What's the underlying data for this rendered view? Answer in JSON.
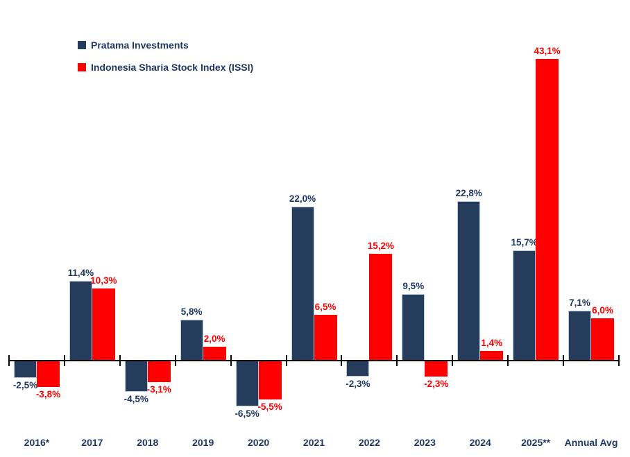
{
  "colors": {
    "pratama_bar": "#263C5B",
    "pratama_bar_border": "#BCC9DA",
    "issi_bar": "#FF0000",
    "pratama_label_text": "#1F3864",
    "issi_label_text": "#FF0000",
    "axis": "#000000",
    "category_label_text": "#1F3864",
    "background": "#FFFFFF"
  },
  "legend": {
    "items": [
      {
        "label": "Pratama Investments",
        "color": "#263C5B",
        "swatch_name": "legend-swatch-pratama"
      },
      {
        "label": "Indonesia Sharia Stock Index (ISSI)",
        "color": "#FF0000",
        "swatch_name": "legend-swatch-issi"
      }
    ]
  },
  "chart_data": {
    "type": "bar",
    "title": "",
    "categories": [
      "2016*",
      "2017",
      "2018",
      "2019",
      "2020",
      "2021",
      "2022",
      "2023",
      "2024",
      "2025**",
      "Annual Avg"
    ],
    "series": [
      {
        "name": "Pratama Investments",
        "color": "#263C5B",
        "label_color": "#1F3864",
        "values": [
          -2.5,
          11.4,
          -4.5,
          5.8,
          -6.5,
          22.0,
          -2.3,
          9.5,
          22.8,
          15.7,
          7.1
        ],
        "labels": [
          "-2,5%",
          "11,4%",
          "-4,5%",
          "5,8%",
          "-6,5%",
          "22,0%",
          "-2,3%",
          "9,5%",
          "22,8%",
          "15,7%",
          "7,1%"
        ]
      },
      {
        "name": "Indonesia Sharia Stock Index (ISSI)",
        "color": "#FF0000",
        "label_color": "#FF0000",
        "values": [
          -3.8,
          10.3,
          -3.1,
          2.0,
          -5.5,
          6.5,
          15.2,
          -2.3,
          1.4,
          43.1,
          6.0
        ],
        "labels": [
          "-3,8%",
          "10,3%",
          "-3,1%",
          "2,0%",
          "-5,5%",
          "6,5%",
          "15,2%",
          "-2,3%",
          "1,4%",
          "43,1%",
          "6,0%"
        ]
      }
    ],
    "ylim": [
      -10,
      47
    ],
    "xlabel": "",
    "ylabel": "",
    "grid": false,
    "y_axis_visible": false,
    "legend_position": "top-left",
    "value_label_format": "comma-decimal percent",
    "units": "%"
  }
}
